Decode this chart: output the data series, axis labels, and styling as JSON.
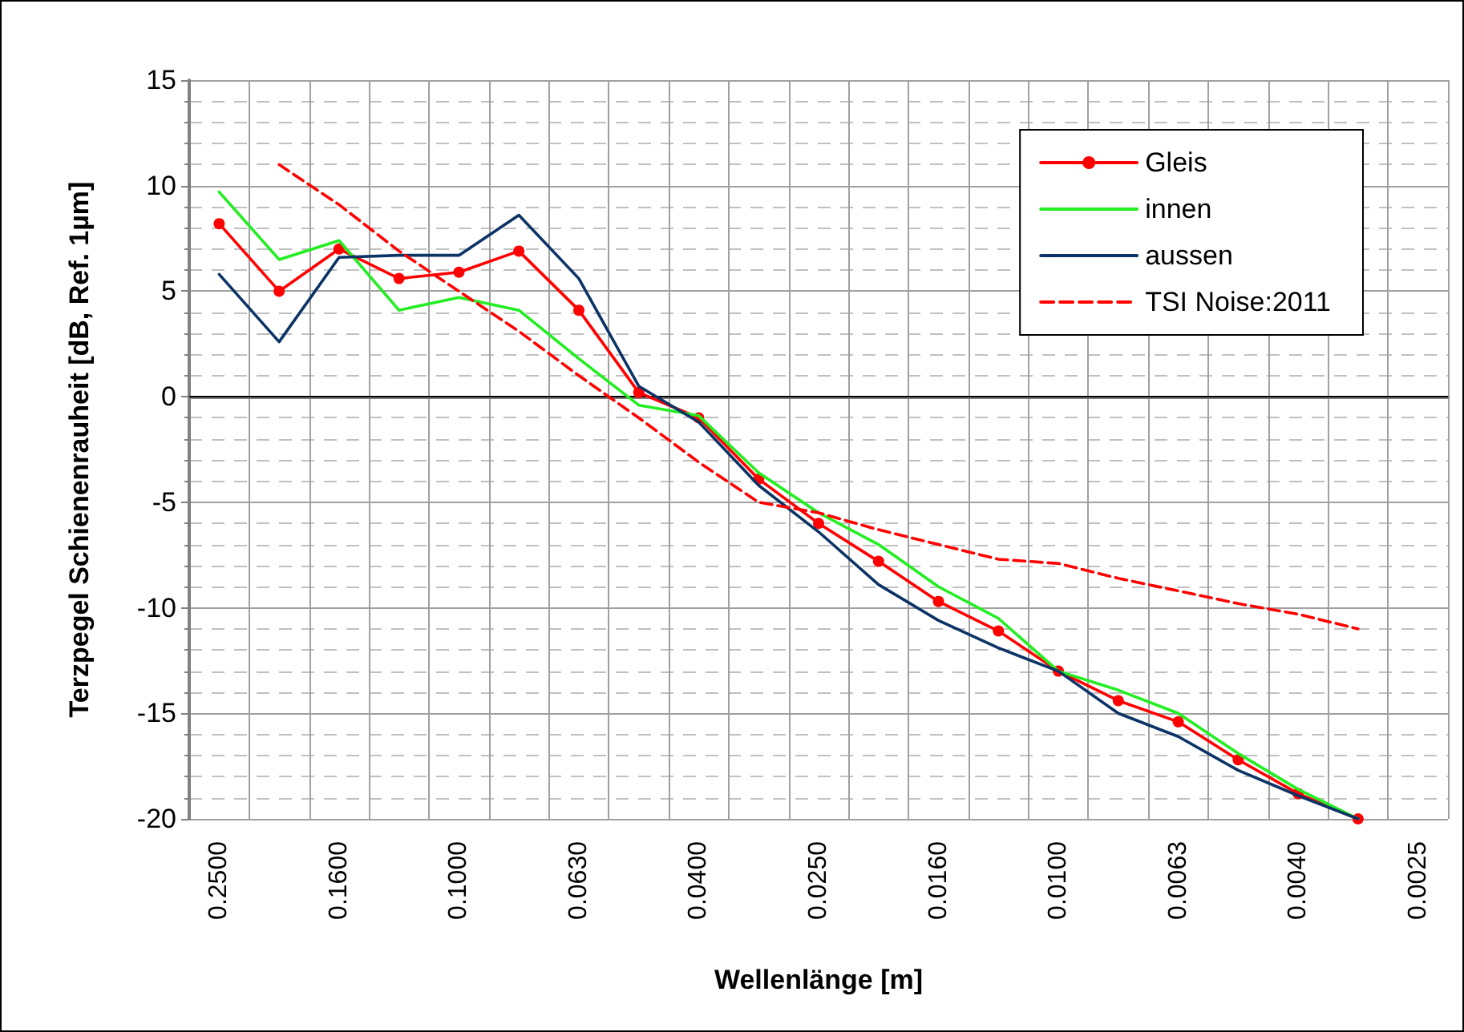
{
  "chart_data": {
    "type": "line",
    "xlabel": "Wellenlänge [m]",
    "ylabel": "Terzpegel Schienenrauheit [dB, Ref. 1µm]",
    "categories": [
      "0.2500",
      null,
      "0.1600",
      null,
      "0.1000",
      null,
      "0.0630",
      null,
      "0.0400",
      null,
      "0.0250",
      null,
      "0.0160",
      null,
      "0.0100",
      null,
      "0.0063",
      null,
      "0.0040",
      null,
      "0.0025"
    ],
    "series": [
      {
        "name": "Gleis",
        "color": "#ff0000",
        "marker": "circle",
        "line_style": "solid",
        "values": [
          8.2,
          5.0,
          7.0,
          5.6,
          5.9,
          6.9,
          4.1,
          0.2,
          -1.0,
          -3.9,
          -6.0,
          -7.8,
          -9.7,
          -11.1,
          -13.0,
          -14.4,
          -15.4,
          -17.2,
          -18.8,
          -20,
          null
        ]
      },
      {
        "name": "innen",
        "color": "#22ee22",
        "marker": "none",
        "line_style": "solid",
        "values": [
          9.7,
          6.5,
          7.4,
          4.1,
          4.7,
          4.1,
          1.8,
          -0.4,
          -0.9,
          -3.6,
          -5.5,
          -7.0,
          -9.0,
          -10.5,
          -13.0,
          -13.9,
          -15.0,
          -16.9,
          -18.6,
          -20,
          null
        ]
      },
      {
        "name": "aussen",
        "color": "#0b3366",
        "marker": "none",
        "line_style": "solid",
        "values": [
          5.8,
          2.6,
          6.6,
          6.7,
          6.7,
          8.6,
          5.6,
          0.5,
          -1.2,
          -4.2,
          -6.4,
          -8.9,
          -10.6,
          -11.9,
          -13.0,
          -15.0,
          -16.1,
          -17.7,
          -18.9,
          -20,
          null
        ]
      },
      {
        "name": "TSI Noise:2011",
        "color": "#ff0000",
        "marker": "none",
        "line_style": "dashed",
        "values": [
          null,
          11.0,
          9.1,
          6.9,
          5.0,
          3.1,
          1.0,
          -1.0,
          -3.1,
          -5.0,
          -5.5,
          -6.3,
          -7.0,
          -7.7,
          -7.9,
          -8.6,
          -9.2,
          -9.8,
          -10.3,
          -11.0,
          null
        ]
      }
    ],
    "ylim": [
      -20,
      15
    ],
    "yticks": [
      -20,
      -15,
      -10,
      -5,
      0,
      5,
      10,
      15
    ],
    "ref_lines": [
      {
        "axis": "y",
        "value": 0,
        "color": "#000000"
      }
    ],
    "grid": true,
    "legend": "top right"
  }
}
